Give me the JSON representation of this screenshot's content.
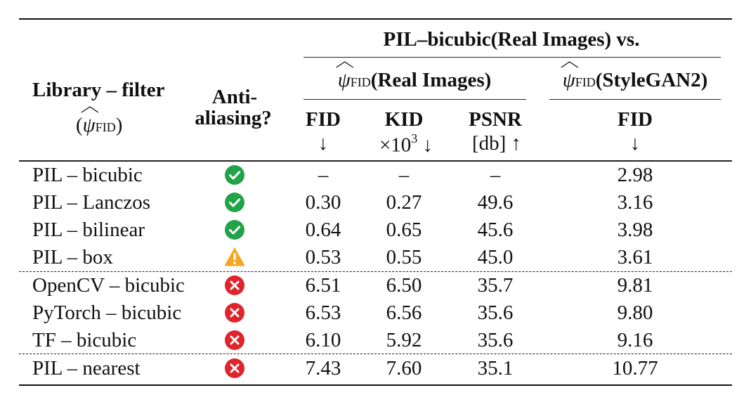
{
  "header": {
    "library_label": "Library – filter",
    "library_sub_open": "(",
    "library_psi": "ψ",
    "library_sub": "FID",
    "library_sub_close": ")",
    "anti_line1": "Anti-",
    "anti_line2": "aliasing?",
    "group_top": "PIL–bicubic(Real Images) vs.",
    "group_real_psi": "ψ",
    "group_real_sub": "FID",
    "group_real_text": "(Real Images)",
    "group_stylegan_psi": "ψ",
    "group_stylegan_sub": "FID",
    "group_stylegan_text": "(StyleGAN2)",
    "col_fid": "FID",
    "col_fid_arrow": "↓",
    "col_kid": "KID",
    "col_kid_unit": "×10",
    "col_kid_exp": "3",
    "col_kid_arrow": "↓",
    "col_psnr": "PSNR",
    "col_psnr_unit": "[db]",
    "col_psnr_arrow": "↑",
    "col_fid2": "FID",
    "col_fid2_arrow": "↓"
  },
  "rows": [
    {
      "library": "PIL – bicubic",
      "anti": "check-icon",
      "fid": "–",
      "kid": "–",
      "psnr": "–",
      "fid_stylegan": "2.98"
    },
    {
      "library": "PIL – Lanczos",
      "anti": "check-icon",
      "fid": "0.30",
      "kid": "0.27",
      "psnr": "49.6",
      "fid_stylegan": "3.16"
    },
    {
      "library": "PIL – bilinear",
      "anti": "check-icon",
      "fid": "0.64",
      "kid": "0.65",
      "psnr": "45.6",
      "fid_stylegan": "3.98"
    },
    {
      "library": "PIL – box",
      "anti": "warning-icon",
      "fid": "0.53",
      "kid": "0.55",
      "psnr": "45.0",
      "fid_stylegan": "3.61"
    },
    {
      "library": "OpenCV – bicubic",
      "anti": "cross-icon",
      "fid": "6.51",
      "kid": "6.50",
      "psnr": "35.7",
      "fid_stylegan": "9.81"
    },
    {
      "library": "PyTorch – bicubic",
      "anti": "cross-icon",
      "fid": "6.53",
      "kid": "6.56",
      "psnr": "35.6",
      "fid_stylegan": "9.80"
    },
    {
      "library": "TF – bicubic",
      "anti": "cross-icon",
      "fid": "6.10",
      "kid": "5.92",
      "psnr": "35.6",
      "fid_stylegan": "9.16"
    },
    {
      "library": "PIL – nearest",
      "anti": "cross-icon",
      "fid": "7.43",
      "kid": "7.60",
      "psnr": "35.1",
      "fid_stylegan": "10.77"
    }
  ],
  "colors": {
    "check": "#22a34a",
    "warning": "#f5a623",
    "cross": "#e0242c"
  }
}
